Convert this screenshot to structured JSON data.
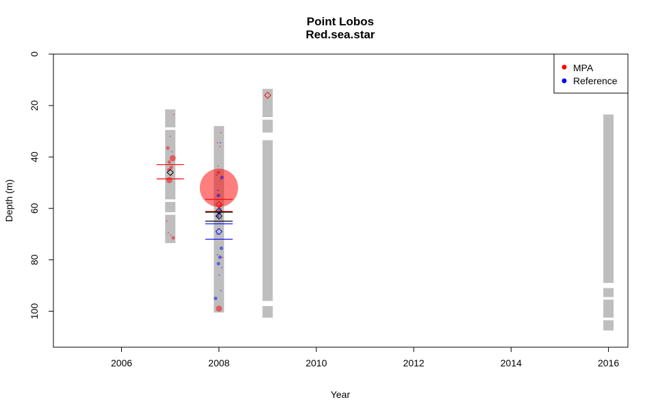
{
  "chart_data": {
    "type": "scatter",
    "title": "Point Lobos",
    "subtitle": "Red.sea.star",
    "xlabel": "Year",
    "ylabel": "Depth (m)",
    "xlim": [
      2004.6,
      2016.4
    ],
    "ylim": [
      0,
      114
    ],
    "y_reversed": true,
    "x_ticks": [
      2006,
      2008,
      2010,
      2012,
      2014,
      2016
    ],
    "y_ticks": [
      0,
      20,
      40,
      60,
      80,
      100
    ],
    "grid": false,
    "legend": {
      "position": "top-right",
      "entries": [
        {
          "label": "MPA",
          "color": "#ff0000"
        },
        {
          "label": "Reference",
          "color": "#0000ff"
        }
      ]
    },
    "sampled_depth_ranges": [
      {
        "year": 2007,
        "segments": [
          [
            21.5,
            28.5
          ],
          [
            29.5,
            56.5
          ],
          [
            57.5,
            61.5
          ],
          [
            62.5,
            73.5
          ]
        ]
      },
      {
        "year": 2008,
        "segments": [
          [
            28,
            100.5
          ]
        ]
      },
      {
        "year": 2009,
        "segments": [
          [
            13.5,
            24.5
          ],
          [
            25.5,
            30.5
          ],
          [
            33.5,
            96
          ],
          [
            98,
            102.5
          ]
        ]
      },
      {
        "year": 2016,
        "segments": [
          [
            23.5,
            89
          ],
          [
            91,
            94.5
          ],
          [
            95.5,
            102.5
          ],
          [
            103.5,
            107.5
          ]
        ]
      }
    ],
    "series": [
      {
        "name": "MPA",
        "color": "#ff0000",
        "points": [
          {
            "x": 2007.07,
            "y": 23.5,
            "size": 1
          },
          {
            "x": 2007.0,
            "y": 32,
            "size": 1
          },
          {
            "x": 2006.95,
            "y": 36.5,
            "size": 2
          },
          {
            "x": 2007.04,
            "y": 38,
            "size": 1
          },
          {
            "x": 2007.05,
            "y": 40.5,
            "size": 3
          },
          {
            "x": 2006.98,
            "y": 42,
            "size": 2
          },
          {
            "x": 2007.02,
            "y": 44,
            "size": 2
          },
          {
            "x": 2006.97,
            "y": 45,
            "size": 2
          },
          {
            "x": 2006.98,
            "y": 49,
            "size": 3
          },
          {
            "x": 2007.03,
            "y": 47,
            "size": 1
          },
          {
            "x": 2006.93,
            "y": 65,
            "size": 1
          },
          {
            "x": 2006.96,
            "y": 69.5,
            "size": 1
          },
          {
            "x": 2007.06,
            "y": 71.5,
            "size": 2
          },
          {
            "x": 2007.01,
            "y": 70.5,
            "size": 1
          },
          {
            "x": 2008.04,
            "y": 30.5,
            "size": 1
          },
          {
            "x": 2007.97,
            "y": 34.5,
            "size": 1
          },
          {
            "x": 2008.02,
            "y": 36,
            "size": 1
          },
          {
            "x": 2007.98,
            "y": 43.5,
            "size": 1
          },
          {
            "x": 2008.0,
            "y": 52,
            "size": 20
          },
          {
            "x": 2007.99,
            "y": 46,
            "size": 2
          },
          {
            "x": 2008.03,
            "y": 49,
            "size": 1
          },
          {
            "x": 2007.96,
            "y": 55,
            "size": 1
          },
          {
            "x": 2008.02,
            "y": 59,
            "size": 2
          },
          {
            "x": 2008.05,
            "y": 64,
            "size": 1
          },
          {
            "x": 2008.0,
            "y": 99,
            "size": 3
          },
          {
            "x": 2008.07,
            "y": 79,
            "size": 1
          }
        ],
        "mean_depth": 46,
        "year_of_mean": 2007,
        "mean_band": [
          43,
          48.5
        ]
      },
      {
        "name": "Reference",
        "color": "#0000ff",
        "points": [
          {
            "x": 2008.03,
            "y": 34.5,
            "size": 1
          },
          {
            "x": 2007.95,
            "y": 47,
            "size": 1
          },
          {
            "x": 2008.06,
            "y": 48,
            "size": 2
          },
          {
            "x": 2007.98,
            "y": 53,
            "size": 1
          },
          {
            "x": 2007.99,
            "y": 55,
            "size": 2
          },
          {
            "x": 2008.04,
            "y": 60,
            "size": 1
          },
          {
            "x": 2008.01,
            "y": 61,
            "size": 2
          },
          {
            "x": 2007.98,
            "y": 63,
            "size": 2
          },
          {
            "x": 2008.03,
            "y": 62,
            "size": 1
          },
          {
            "x": 2007.96,
            "y": 70,
            "size": 1
          },
          {
            "x": 2008.05,
            "y": 75.5,
            "size": 2
          },
          {
            "x": 2008.02,
            "y": 79,
            "size": 2
          },
          {
            "x": 2007.99,
            "y": 81.5,
            "size": 2
          },
          {
            "x": 2008.06,
            "y": 83,
            "size": 1
          },
          {
            "x": 2007.93,
            "y": 95,
            "size": 2
          },
          {
            "x": 2008.04,
            "y": 92,
            "size": 1
          },
          {
            "x": 2007.97,
            "y": 78,
            "size": 1
          },
          {
            "x": 2008.01,
            "y": 86,
            "size": 1
          }
        ],
        "mean_depth": 69,
        "year_of_mean": 2008,
        "mean_band": [
          66,
          72
        ]
      }
    ],
    "mean_markers": [
      {
        "x": 2007.0,
        "y": 46,
        "color": "#000000"
      },
      {
        "x": 2008.0,
        "y": 61,
        "color": "#000000"
      },
      {
        "x": 2008.0,
        "y": 63,
        "color": "#000000"
      },
      {
        "x": 2008.0,
        "y": 58.5,
        "color": "#ff0000"
      },
      {
        "x": 2008.0,
        "y": 69,
        "color": "#0000ff"
      },
      {
        "x": 2009.0,
        "y": 16,
        "color": "#ff0000"
      }
    ],
    "mean_lines": [
      {
        "x": 2007.0,
        "y": 43,
        "color": "#ff0000"
      },
      {
        "x": 2007.0,
        "y": 48.5,
        "color": "#ff0000"
      },
      {
        "x": 2008.0,
        "y": 56.5,
        "color": "#ff0000"
      },
      {
        "x": 2008.0,
        "y": 61.2,
        "color": "#ff0000"
      },
      {
        "x": 2008.0,
        "y": 61.5,
        "color": "#000000"
      },
      {
        "x": 2008.0,
        "y": 65,
        "color": "#000000"
      },
      {
        "x": 2008.0,
        "y": 66,
        "color": "#0000ff"
      },
      {
        "x": 2008.0,
        "y": 72,
        "color": "#0000ff"
      }
    ]
  }
}
